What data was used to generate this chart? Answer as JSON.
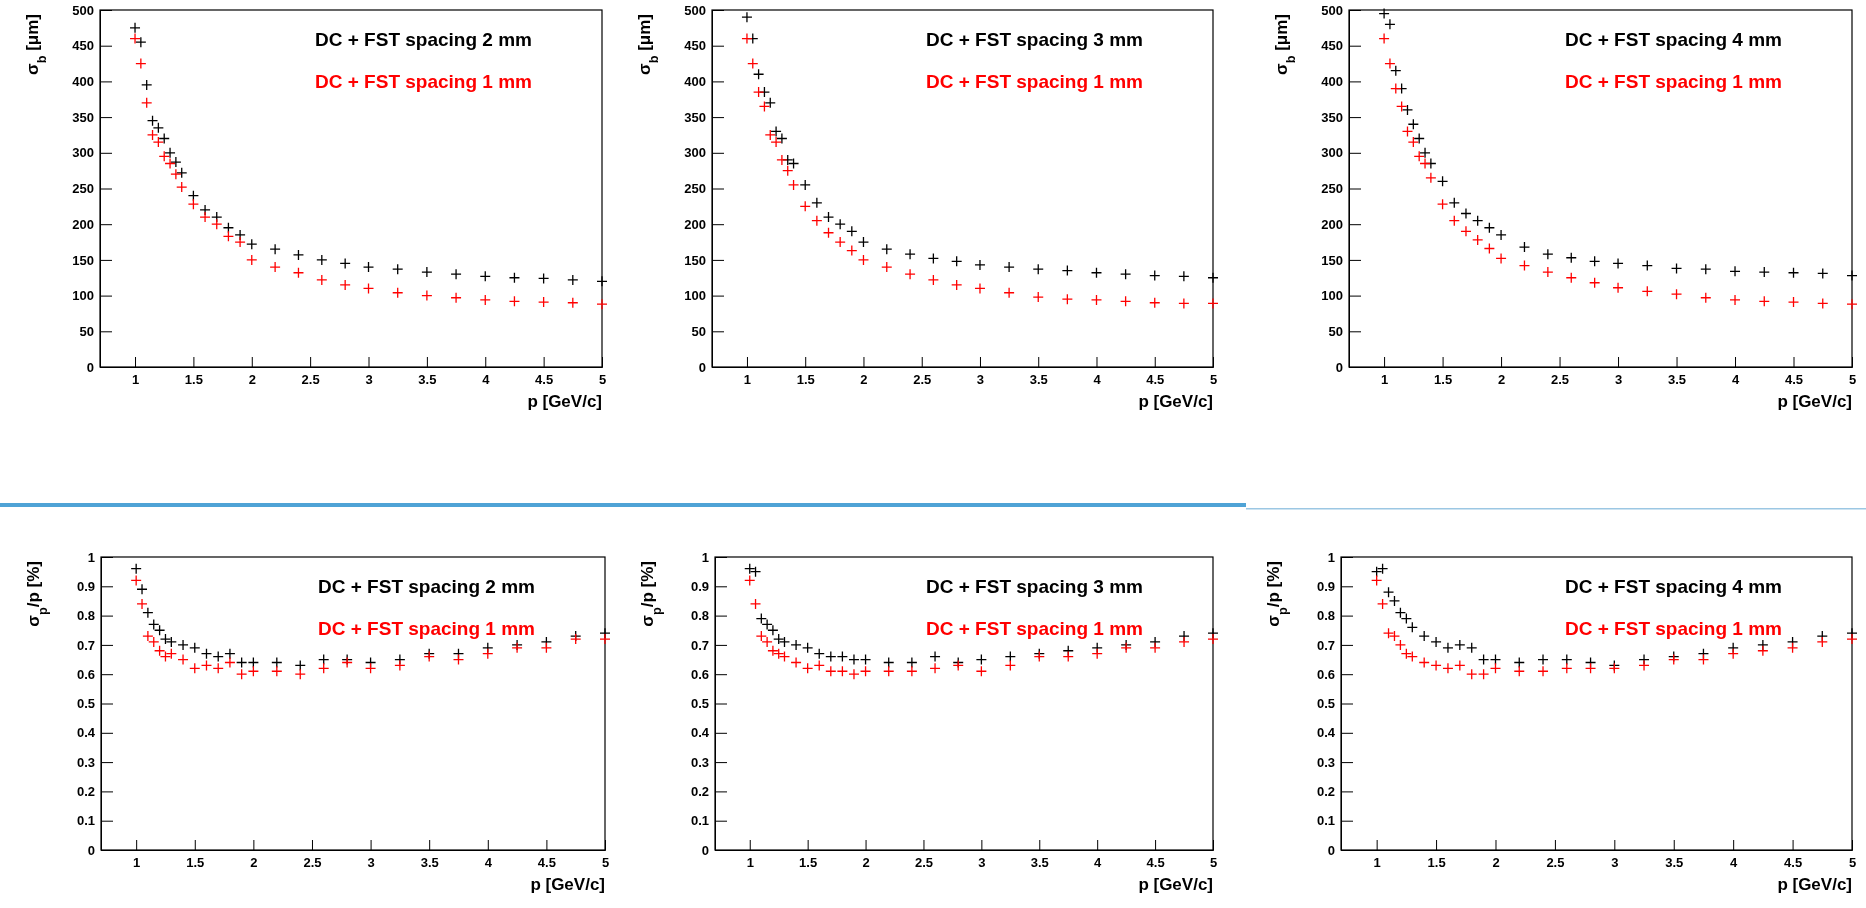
{
  "chart_data": [
    {
      "type": "scatter",
      "marker": "cross",
      "legend": "top right",
      "xlabel": "p [GeV/c]",
      "ylabel": "σ$_{b}$ [μm]",
      "xlim": [
        0.7,
        5
      ],
      "xticks": [
        1,
        1.5,
        2,
        2.5,
        3,
        3.5,
        4,
        4.5,
        5
      ],
      "ylim": [
        0,
        500
      ],
      "yticks": [
        0,
        50,
        100,
        150,
        200,
        250,
        300,
        350,
        400,
        450,
        500
      ],
      "x": [
        1,
        1.05,
        1.1,
        1.15,
        1.2,
        1.25,
        1.3,
        1.35,
        1.4,
        1.5,
        1.6,
        1.7,
        1.8,
        1.9,
        2,
        2.2,
        2.4,
        2.6,
        2.8,
        3,
        3.25,
        3.5,
        3.75,
        4,
        4.25,
        4.5,
        4.75,
        5
      ],
      "series": [
        {
          "name": "DC + FST spacing 2 mm",
          "color": "#000000",
          "values": [
            475,
            455,
            395,
            345,
            335,
            320,
            300,
            287,
            272,
            240,
            220,
            210,
            195,
            185,
            172,
            165,
            157,
            150,
            145,
            140,
            137,
            133,
            130,
            127,
            125,
            124,
            122,
            120
          ]
        },
        {
          "name": "DC + FST spacing 1 mm",
          "color": "#ff0000",
          "values": [
            460,
            425,
            370,
            325,
            315,
            295,
            285,
            270,
            252,
            228,
            210,
            200,
            183,
            175,
            150,
            140,
            132,
            122,
            115,
            110,
            104,
            100,
            97,
            94,
            92,
            91,
            90,
            88
          ]
        }
      ]
    },
    {
      "type": "scatter",
      "marker": "cross",
      "legend": "top right",
      "xlabel": "p [GeV/c]",
      "ylabel": "σ$_{b}$ [μm]",
      "xlim": [
        0.7,
        5
      ],
      "xticks": [
        1,
        1.5,
        2,
        2.5,
        3,
        3.5,
        4,
        4.5,
        5
      ],
      "ylim": [
        0,
        500
      ],
      "yticks": [
        0,
        50,
        100,
        150,
        200,
        250,
        300,
        350,
        400,
        450,
        500
      ],
      "x": [
        1,
        1.05,
        1.1,
        1.15,
        1.2,
        1.25,
        1.3,
        1.35,
        1.4,
        1.5,
        1.6,
        1.7,
        1.8,
        1.9,
        2,
        2.2,
        2.4,
        2.6,
        2.8,
        3,
        3.25,
        3.5,
        3.75,
        4,
        4.25,
        4.5,
        4.75,
        5
      ],
      "series": [
        {
          "name": "DC + FST spacing 3 mm",
          "color": "#000000",
          "values": [
            490,
            460,
            410,
            385,
            370,
            330,
            320,
            290,
            285,
            255,
            230,
            210,
            200,
            190,
            175,
            165,
            158,
            152,
            148,
            143,
            140,
            137,
            135,
            132,
            130,
            128,
            127,
            125
          ]
        },
        {
          "name": "DC + FST spacing 1 mm",
          "color": "#ff0000",
          "values": [
            460,
            425,
            385,
            365,
            325,
            315,
            290,
            275,
            255,
            225,
            205,
            188,
            175,
            163,
            150,
            140,
            130,
            122,
            115,
            110,
            104,
            98,
            95,
            94,
            92,
            90,
            89,
            89
          ]
        }
      ]
    },
    {
      "type": "scatter",
      "marker": "cross",
      "legend": "top right",
      "xlabel": "p [GeV/c]",
      "ylabel": "σ$_{b}$ [μm]",
      "xlim": [
        0.7,
        5
      ],
      "xticks": [
        1,
        1.5,
        2,
        2.5,
        3,
        3.5,
        4,
        4.5,
        5
      ],
      "ylim": [
        0,
        500
      ],
      "yticks": [
        0,
        50,
        100,
        150,
        200,
        250,
        300,
        350,
        400,
        450,
        500
      ],
      "x": [
        1,
        1.05,
        1.1,
        1.15,
        1.2,
        1.25,
        1.3,
        1.35,
        1.4,
        1.5,
        1.6,
        1.7,
        1.8,
        1.9,
        2,
        2.2,
        2.4,
        2.6,
        2.8,
        3,
        3.25,
        3.5,
        3.75,
        4,
        4.25,
        4.5,
        4.75,
        5
      ],
      "series": [
        {
          "name": "DC + FST spacing 4 mm",
          "color": "#000000",
          "values": [
            495,
            480,
            415,
            390,
            360,
            340,
            320,
            300,
            285,
            260,
            230,
            215,
            205,
            195,
            185,
            168,
            158,
            153,
            148,
            145,
            142,
            138,
            137,
            134,
            133,
            132,
            131,
            128
          ]
        },
        {
          "name": "DC + FST spacing 1 mm",
          "color": "#ff0000",
          "values": [
            460,
            425,
            390,
            365,
            330,
            315,
            295,
            285,
            265,
            228,
            205,
            190,
            178,
            166,
            152,
            142,
            133,
            125,
            118,
            111,
            106,
            102,
            97,
            94,
            92,
            91,
            89,
            88
          ]
        }
      ]
    },
    {
      "type": "scatter",
      "marker": "cross",
      "legend": "top right",
      "xlabel": "p [GeV/c]",
      "ylabel": "σ$_{p}$/p [%]",
      "xlim": [
        0.7,
        5
      ],
      "xticks": [
        1,
        1.5,
        2,
        2.5,
        3,
        3.5,
        4,
        4.5,
        5
      ],
      "ylim": [
        0,
        1
      ],
      "yticks": [
        0,
        0.1,
        0.2,
        0.3,
        0.4,
        0.5,
        0.6,
        0.7,
        0.8,
        0.9,
        1
      ],
      "x": [
        1,
        1.05,
        1.1,
        1.15,
        1.2,
        1.25,
        1.3,
        1.4,
        1.5,
        1.6,
        1.7,
        1.8,
        1.9,
        2,
        2.2,
        2.4,
        2.6,
        2.8,
        3,
        3.25,
        3.5,
        3.75,
        4,
        4.25,
        4.5,
        4.75,
        5
      ],
      "series": [
        {
          "name": "DC + FST spacing 2 mm",
          "color": "#000000",
          "values": [
            0.96,
            0.89,
            0.81,
            0.77,
            0.75,
            0.72,
            0.71,
            0.7,
            0.69,
            0.67,
            0.66,
            0.67,
            0.64,
            0.64,
            0.64,
            0.63,
            0.65,
            0.65,
            0.64,
            0.65,
            0.67,
            0.67,
            0.69,
            0.7,
            0.71,
            0.73,
            0.74
          ]
        },
        {
          "name": "DC + FST spacing 1 mm",
          "color": "#ff0000",
          "values": [
            0.92,
            0.84,
            0.73,
            0.71,
            0.68,
            0.66,
            0.67,
            0.65,
            0.62,
            0.63,
            0.62,
            0.64,
            0.6,
            0.61,
            0.61,
            0.6,
            0.62,
            0.64,
            0.62,
            0.63,
            0.66,
            0.65,
            0.67,
            0.69,
            0.69,
            0.72,
            0.72
          ]
        }
      ]
    },
    {
      "type": "scatter",
      "marker": "cross",
      "legend": "top right",
      "xlabel": "p [GeV/c]",
      "ylabel": "σ$_{p}$/p [%]",
      "xlim": [
        0.7,
        5
      ],
      "xticks": [
        1,
        1.5,
        2,
        2.5,
        3,
        3.5,
        4,
        4.5,
        5
      ],
      "ylim": [
        0,
        1
      ],
      "yticks": [
        0,
        0.1,
        0.2,
        0.3,
        0.4,
        0.5,
        0.6,
        0.7,
        0.8,
        0.9,
        1
      ],
      "x": [
        1,
        1.05,
        1.1,
        1.15,
        1.2,
        1.25,
        1.3,
        1.4,
        1.5,
        1.6,
        1.7,
        1.8,
        1.9,
        2,
        2.2,
        2.4,
        2.6,
        2.8,
        3,
        3.25,
        3.5,
        3.75,
        4,
        4.25,
        4.5,
        4.75,
        5
      ],
      "series": [
        {
          "name": "DC + FST spacing 3 mm",
          "color": "#000000",
          "values": [
            0.96,
            0.95,
            0.79,
            0.77,
            0.75,
            0.72,
            0.71,
            0.7,
            0.69,
            0.67,
            0.66,
            0.66,
            0.65,
            0.65,
            0.64,
            0.64,
            0.66,
            0.64,
            0.65,
            0.66,
            0.67,
            0.68,
            0.69,
            0.7,
            0.71,
            0.73,
            0.74
          ]
        },
        {
          "name": "DC + FST spacing 1 mm",
          "color": "#ff0000",
          "values": [
            0.92,
            0.84,
            0.73,
            0.71,
            0.68,
            0.67,
            0.66,
            0.64,
            0.62,
            0.63,
            0.61,
            0.61,
            0.6,
            0.61,
            0.61,
            0.61,
            0.62,
            0.63,
            0.61,
            0.63,
            0.66,
            0.66,
            0.67,
            0.69,
            0.69,
            0.71,
            0.72
          ]
        }
      ]
    },
    {
      "type": "scatter",
      "marker": "cross",
      "legend": "top right",
      "xlabel": "p [GeV/c]",
      "ylabel": "σ$_{p}$/p [%]",
      "xlim": [
        0.7,
        5
      ],
      "xticks": [
        1,
        1.5,
        2,
        2.5,
        3,
        3.5,
        4,
        4.5,
        5
      ],
      "ylim": [
        0,
        1
      ],
      "yticks": [
        0,
        0.1,
        0.2,
        0.3,
        0.4,
        0.5,
        0.6,
        0.7,
        0.8,
        0.9,
        1
      ],
      "x": [
        1,
        1.05,
        1.1,
        1.15,
        1.2,
        1.25,
        1.3,
        1.4,
        1.5,
        1.6,
        1.7,
        1.8,
        1.9,
        2,
        2.2,
        2.4,
        2.6,
        2.8,
        3,
        3.25,
        3.5,
        3.75,
        4,
        4.25,
        4.5,
        4.75,
        5
      ],
      "series": [
        {
          "name": "DC + FST spacing 4 mm",
          "color": "#000000",
          "values": [
            0.95,
            0.96,
            0.88,
            0.85,
            0.81,
            0.79,
            0.76,
            0.73,
            0.71,
            0.69,
            0.7,
            0.69,
            0.65,
            0.65,
            0.64,
            0.65,
            0.65,
            0.64,
            0.63,
            0.65,
            0.66,
            0.67,
            0.69,
            0.7,
            0.71,
            0.73,
            0.74
          ]
        },
        {
          "name": "DC + FST spacing 1 mm",
          "color": "#ff0000",
          "values": [
            0.92,
            0.84,
            0.74,
            0.73,
            0.7,
            0.67,
            0.66,
            0.64,
            0.63,
            0.62,
            0.63,
            0.6,
            0.6,
            0.62,
            0.61,
            0.61,
            0.62,
            0.62,
            0.62,
            0.63,
            0.65,
            0.65,
            0.67,
            0.68,
            0.69,
            0.71,
            0.72
          ]
        }
      ]
    }
  ]
}
